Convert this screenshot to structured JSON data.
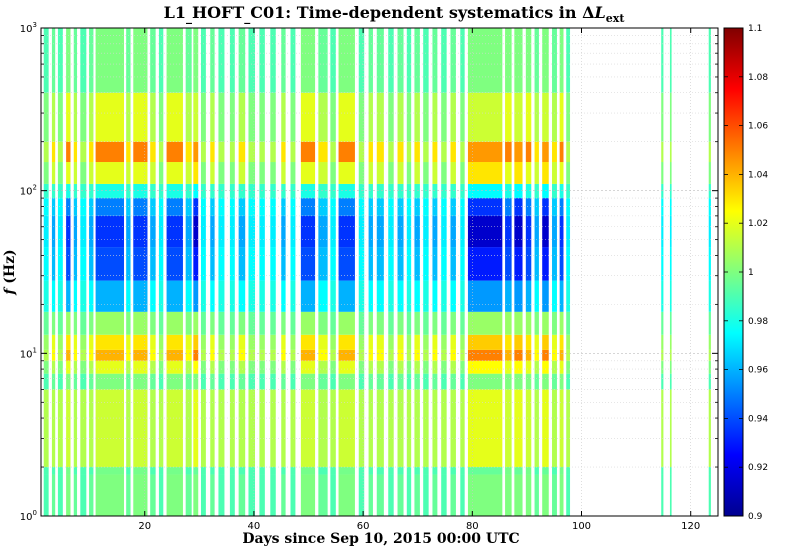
{
  "chart_data": {
    "type": "heatmap",
    "title": "L1_HOFT_C01: Time-dependent systematics in ΔL_ext",
    "title_parts": {
      "main": "L1",
      "sub1": "HOFT",
      "sub2": "C01: Time-dependent systematics in ",
      "delta": "Δ",
      "var": "L",
      "subscript": "ext"
    },
    "xlabel": "Days since Sep 10, 2015 00:00 UTC",
    "ylabel_var": "f",
    "ylabel_unit": "(Hz)",
    "xlim": [
      1,
      125
    ],
    "x_ticks": [
      20,
      40,
      60,
      80,
      100,
      120
    ],
    "x_tick_labels": [
      "20",
      "40",
      "60",
      "80",
      "100",
      "120"
    ],
    "y_scale": "log",
    "ylim": [
      1,
      1000
    ],
    "y_ticks": [
      1,
      10,
      100,
      1000
    ],
    "y_tick_labels": [
      {
        "base": "10",
        "exp": "0"
      },
      {
        "base": "10",
        "exp": "1"
      },
      {
        "base": "10",
        "exp": "2"
      },
      {
        "base": "10",
        "exp": "3"
      }
    ],
    "grid": true,
    "colormap": "jet",
    "colorbar": {
      "min": 0.9,
      "max": 1.1,
      "ticks": [
        0.9,
        0.92,
        0.94,
        0.96,
        0.98,
        1,
        1.02,
        1.04,
        1.06,
        1.08,
        1.1
      ],
      "tick_labels": [
        "0.9",
        "0.92",
        "0.94",
        "0.96",
        "0.98",
        "1",
        "1.02",
        "1.04",
        "1.06",
        "1.08",
        "1.1"
      ]
    },
    "frequency_band_edges_hz": [
      1,
      1.8,
      2.0,
      6,
      7.5,
      9,
      10.5,
      13,
      18,
      28,
      45,
      70,
      90,
      110,
      150,
      200,
      400,
      1000
    ],
    "band_pattern_by_group": {
      "deep": [
        1.0,
        0.995,
        1.02,
        1.0,
        1.025,
        1.05,
        1.035,
        1.005,
        0.955,
        0.93,
        0.915,
        0.935,
        0.975,
        1.03,
        1.045,
        1.015,
        1.0
      ],
      "strong": [
        1.0,
        0.998,
        1.015,
        1.0,
        1.02,
        1.04,
        1.03,
        1.005,
        0.96,
        0.94,
        0.935,
        0.95,
        0.98,
        1.02,
        1.05,
        1.02,
        1.0
      ],
      "medium": [
        0.995,
        0.99,
        1.01,
        0.995,
        1.01,
        1.025,
        1.02,
        1.0,
        0.975,
        0.962,
        0.958,
        0.965,
        0.985,
        1.015,
        1.03,
        1.01,
        0.995
      ],
      "weak": [
        0.99,
        0.99,
        1.01,
        0.99,
        1.0,
        1.01,
        1.005,
        0.995,
        0.98,
        0.975,
        0.972,
        0.975,
        0.985,
        1.0,
        1.01,
        1.0,
        0.99
      ]
    },
    "time_segments": [
      {
        "start": 1.5,
        "end": 2.4,
        "group": "weak"
      },
      {
        "start": 3.0,
        "end": 3.6,
        "group": "medium"
      },
      {
        "start": 4.1,
        "end": 5.0,
        "group": "weak"
      },
      {
        "start": 5.6,
        "end": 6.4,
        "group": "strong"
      },
      {
        "start": 7.0,
        "end": 7.6,
        "group": "medium"
      },
      {
        "start": 8.2,
        "end": 9.3,
        "group": "weak"
      },
      {
        "start": 9.8,
        "end": 10.6,
        "group": "medium"
      },
      {
        "start": 11.0,
        "end": 16.2,
        "group": "strong"
      },
      {
        "start": 16.6,
        "end": 17.4,
        "group": "medium"
      },
      {
        "start": 17.9,
        "end": 20.5,
        "group": "strong"
      },
      {
        "start": 21.0,
        "end": 22.0,
        "group": "medium"
      },
      {
        "start": 22.6,
        "end": 23.4,
        "group": "weak"
      },
      {
        "start": 24.0,
        "end": 27.0,
        "group": "strong"
      },
      {
        "start": 27.5,
        "end": 28.6,
        "group": "medium"
      },
      {
        "start": 28.9,
        "end": 29.8,
        "group": "deep"
      },
      {
        "start": 30.3,
        "end": 31.2,
        "group": "weak"
      },
      {
        "start": 32.0,
        "end": 32.8,
        "group": "medium"
      },
      {
        "start": 33.5,
        "end": 34.6,
        "group": "weak"
      },
      {
        "start": 35.6,
        "end": 36.5,
        "group": "weak"
      },
      {
        "start": 37.2,
        "end": 38.4,
        "group": "medium"
      },
      {
        "start": 39.0,
        "end": 40.2,
        "group": "weak"
      },
      {
        "start": 41.0,
        "end": 42.0,
        "group": "weak"
      },
      {
        "start": 43.0,
        "end": 44.0,
        "group": "weak"
      },
      {
        "start": 45.0,
        "end": 45.8,
        "group": "medium"
      },
      {
        "start": 46.7,
        "end": 47.6,
        "group": "weak"
      },
      {
        "start": 48.6,
        "end": 51.2,
        "group": "strong"
      },
      {
        "start": 51.8,
        "end": 53.5,
        "group": "medium"
      },
      {
        "start": 54.0,
        "end": 55.0,
        "group": "weak"
      },
      {
        "start": 55.5,
        "end": 58.5,
        "group": "strong"
      },
      {
        "start": 59.2,
        "end": 60.2,
        "group": "weak"
      },
      {
        "start": 61.0,
        "end": 61.8,
        "group": "medium"
      },
      {
        "start": 62.5,
        "end": 63.8,
        "group": "medium"
      },
      {
        "start": 64.6,
        "end": 65.6,
        "group": "weak"
      },
      {
        "start": 66.3,
        "end": 67.4,
        "group": "medium"
      },
      {
        "start": 68.0,
        "end": 68.8,
        "group": "weak"
      },
      {
        "start": 69.4,
        "end": 70.4,
        "group": "medium"
      },
      {
        "start": 71.0,
        "end": 72.0,
        "group": "weak"
      },
      {
        "start": 72.7,
        "end": 73.6,
        "group": "medium"
      },
      {
        "start": 74.3,
        "end": 75.3,
        "group": "weak"
      },
      {
        "start": 76.0,
        "end": 77.0,
        "group": "medium"
      },
      {
        "start": 77.8,
        "end": 78.6,
        "group": "weak"
      },
      {
        "start": 79.2,
        "end": 85.5,
        "group": "deep"
      },
      {
        "start": 86.0,
        "end": 87.2,
        "group": "strong"
      },
      {
        "start": 87.7,
        "end": 89.2,
        "group": "deep"
      },
      {
        "start": 89.8,
        "end": 90.8,
        "group": "strong"
      },
      {
        "start": 91.4,
        "end": 92.2,
        "group": "medium"
      },
      {
        "start": 92.8,
        "end": 94.0,
        "group": "deep"
      },
      {
        "start": 94.6,
        "end": 95.5,
        "group": "medium"
      },
      {
        "start": 96.0,
        "end": 96.7,
        "group": "strong"
      },
      {
        "start": 97.2,
        "end": 97.9,
        "group": "weak"
      },
      {
        "start": 114.6,
        "end": 115.0,
        "group": "weak"
      },
      {
        "start": 116.2,
        "end": 116.5,
        "group": "weak"
      },
      {
        "start": 123.3,
        "end": 123.7,
        "group": "weak"
      }
    ]
  }
}
